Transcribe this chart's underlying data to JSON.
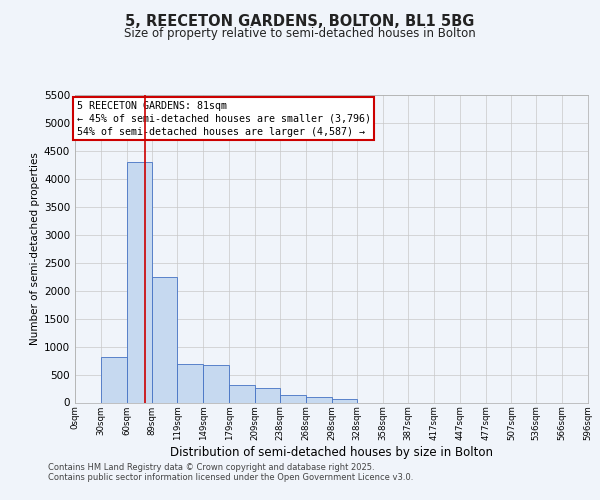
{
  "title_line1": "5, REECETON GARDENS, BOLTON, BL1 5BG",
  "title_line2": "Size of property relative to semi-detached houses in Bolton",
  "xlabel": "Distribution of semi-detached houses by size in Bolton",
  "ylabel": "Number of semi-detached properties",
  "footer_line1": "Contains HM Land Registry data © Crown copyright and database right 2025.",
  "footer_line2": "Contains public sector information licensed under the Open Government Licence v3.0.",
  "annotation_title": "5 REECETON GARDENS: 81sqm",
  "annotation_line1": "← 45% of semi-detached houses are smaller (3,796)",
  "annotation_line2": "54% of semi-detached houses are larger (4,587) →",
  "property_size": 81,
  "bin_edges": [
    0,
    30,
    60,
    89,
    119,
    149,
    179,
    209,
    238,
    268,
    298,
    328,
    358,
    387,
    417,
    447,
    477,
    507,
    536,
    566,
    596
  ],
  "bar_values": [
    0,
    820,
    4300,
    2250,
    680,
    670,
    310,
    260,
    130,
    100,
    60,
    0,
    0,
    0,
    0,
    0,
    0,
    0,
    0,
    0
  ],
  "tick_labels": [
    "0sqm",
    "30sqm",
    "60sqm",
    "89sqm",
    "119sqm",
    "149sqm",
    "179sqm",
    "209sqm",
    "238sqm",
    "268sqm",
    "298sqm",
    "328sqm",
    "358sqm",
    "387sqm",
    "417sqm",
    "447sqm",
    "477sqm",
    "507sqm",
    "536sqm",
    "566sqm",
    "596sqm"
  ],
  "bar_color": "#c6d9f0",
  "bar_edge_color": "#4472c4",
  "line_color": "#cc0000",
  "annotation_box_color": "#cc0000",
  "grid_color": "#c8c8c8",
  "background_color": "#f0f4fa",
  "ylim": [
    0,
    5500
  ],
  "yticks": [
    0,
    500,
    1000,
    1500,
    2000,
    2500,
    3000,
    3500,
    4000,
    4500,
    5000,
    5500
  ]
}
